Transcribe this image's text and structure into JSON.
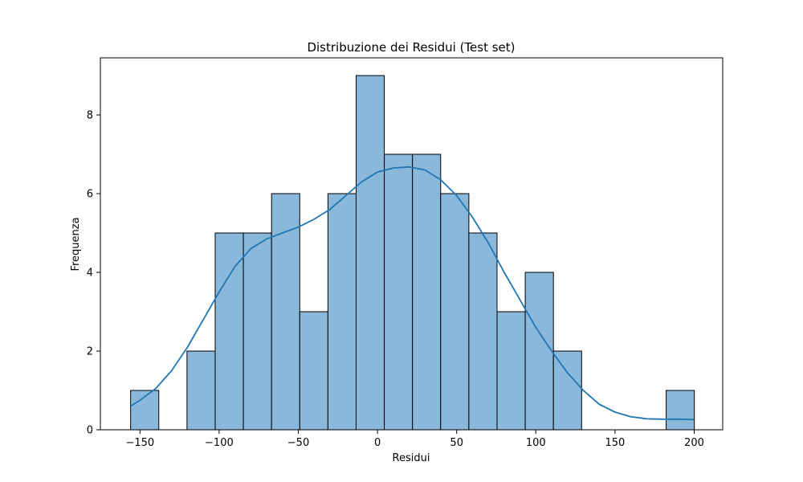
{
  "chart_data": {
    "type": "bar",
    "title": "Distribuzione dei Residui (Test set)",
    "xlabel": "Residui",
    "ylabel": "Frequenza",
    "xlim": [
      -175,
      218
    ],
    "ylim": [
      0,
      9.45
    ],
    "xticks": [
      -150,
      -100,
      -50,
      0,
      50,
      100,
      150,
      200
    ],
    "xtick_labels": [
      "−150",
      "−100",
      "−50",
      "0",
      "50",
      "100",
      "150",
      "200"
    ],
    "yticks": [
      0,
      2,
      4,
      6,
      8
    ],
    "ytick_labels": [
      "0",
      "2",
      "4",
      "6",
      "8"
    ],
    "bin_edges": [
      -155.9,
      -138.1,
      -120.3,
      -102.5,
      -84.7,
      -66.9,
      -49.1,
      -31.3,
      -13.5,
      4.3,
      22.1,
      39.9,
      57.7,
      75.5,
      93.3,
      111.1,
      128.9,
      146.7,
      164.5,
      182.3,
      200.1
    ],
    "counts": [
      1,
      0,
      2,
      5,
      5,
      6,
      3,
      6,
      9,
      7,
      7,
      6,
      5,
      3,
      4,
      2,
      0,
      0,
      0,
      1
    ],
    "kde": {
      "x": [
        -156,
        -150,
        -140,
        -130,
        -120,
        -110,
        -100,
        -90,
        -80,
        -70,
        -60,
        -50,
        -40,
        -30,
        -20,
        -10,
        0,
        10,
        20,
        30,
        40,
        50,
        60,
        70,
        80,
        90,
        100,
        110,
        120,
        130,
        140,
        150,
        160,
        170,
        180,
        190,
        200
      ],
      "y": [
        0.6,
        0.75,
        1.05,
        1.5,
        2.1,
        2.8,
        3.5,
        4.15,
        4.6,
        4.85,
        5.0,
        5.15,
        5.35,
        5.6,
        5.95,
        6.3,
        6.55,
        6.65,
        6.68,
        6.6,
        6.35,
        5.95,
        5.4,
        4.75,
        4.0,
        3.3,
        2.6,
        2.0,
        1.45,
        1.0,
        0.65,
        0.45,
        0.33,
        0.28,
        0.27,
        0.27,
        0.26
      ]
    },
    "bar_color": "#8ab8da",
    "bar_edge_color": "#000000",
    "line_color": "#1f77b4",
    "grid": false,
    "legend": "none"
  }
}
